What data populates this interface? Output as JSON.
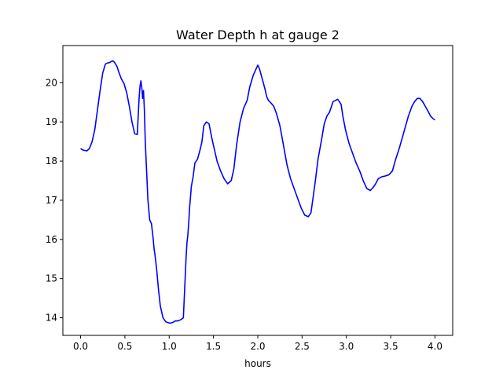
{
  "chart_data": {
    "type": "line",
    "title": "Water Depth h at gauge 2",
    "xlabel": "hours",
    "ylabel": "",
    "xlim": [
      -0.2,
      4.2
    ],
    "ylim": [
      13.55,
      20.95
    ],
    "xticks": [
      0.0,
      0.5,
      1.0,
      1.5,
      2.0,
      2.5,
      3.0,
      3.5,
      4.0
    ],
    "xtick_labels": [
      "0.0",
      "0.5",
      "1.0",
      "1.5",
      "2.0",
      "2.5",
      "3.0",
      "3.5",
      "4.0"
    ],
    "yticks": [
      14,
      15,
      16,
      17,
      18,
      19,
      20
    ],
    "ytick_labels": [
      "14",
      "15",
      "16",
      "17",
      "18",
      "19",
      "20"
    ],
    "grid": false,
    "series": [
      {
        "color": "#0000ff",
        "x": [
          0.0,
          0.03,
          0.07,
          0.1,
          0.13,
          0.16,
          0.19,
          0.22,
          0.25,
          0.28,
          0.3,
          0.33,
          0.36,
          0.38,
          0.41,
          0.43,
          0.46,
          0.49,
          0.52,
          0.55,
          0.58,
          0.61,
          0.64,
          0.66,
          0.67,
          0.68,
          0.69,
          0.7,
          0.71,
          0.72,
          0.73,
          0.74,
          0.75,
          0.76,
          0.78,
          0.8,
          0.82,
          0.83,
          0.84,
          0.86,
          0.88,
          0.9,
          0.93,
          0.96,
          0.98,
          1.01,
          1.04,
          1.07,
          1.1,
          1.13,
          1.16,
          1.18,
          1.19,
          1.2,
          1.21,
          1.22,
          1.23,
          1.25,
          1.27,
          1.29,
          1.32,
          1.35,
          1.37,
          1.39,
          1.42,
          1.45,
          1.48,
          1.51,
          1.54,
          1.58,
          1.62,
          1.66,
          1.7,
          1.73,
          1.76,
          1.8,
          1.84,
          1.88,
          1.91,
          1.95,
          1.98,
          2.0,
          2.02,
          2.05,
          2.08,
          2.1,
          2.12,
          2.15,
          2.18,
          2.21,
          2.25,
          2.29,
          2.33,
          2.37,
          2.41,
          2.45,
          2.49,
          2.53,
          2.57,
          2.6,
          2.62,
          2.65,
          2.68,
          2.72,
          2.75,
          2.78,
          2.81,
          2.85,
          2.88,
          2.9,
          2.92,
          2.94,
          2.96,
          2.99,
          3.03,
          3.07,
          3.11,
          3.15,
          3.19,
          3.23,
          3.27,
          3.3,
          3.33,
          3.36,
          3.4,
          3.44,
          3.48,
          3.52,
          3.55,
          3.6,
          3.65,
          3.7,
          3.74,
          3.77,
          3.8,
          3.83,
          3.86,
          3.89,
          3.92,
          3.95,
          3.98,
          4.0
        ],
        "y": [
          18.32,
          18.28,
          18.26,
          18.32,
          18.5,
          18.8,
          19.3,
          19.8,
          20.25,
          20.48,
          20.5,
          20.52,
          20.56,
          20.53,
          20.42,
          20.28,
          20.1,
          19.98,
          19.75,
          19.4,
          19.0,
          18.7,
          18.68,
          19.6,
          19.9,
          20.05,
          19.9,
          19.6,
          19.8,
          19.3,
          18.5,
          18.0,
          17.5,
          17.0,
          16.5,
          16.4,
          16.0,
          15.75,
          15.6,
          15.2,
          14.7,
          14.3,
          14.0,
          13.9,
          13.88,
          13.86,
          13.88,
          13.92,
          13.92,
          13.95,
          14.0,
          15.0,
          15.5,
          15.9,
          16.1,
          16.4,
          16.8,
          17.35,
          17.6,
          17.95,
          18.05,
          18.3,
          18.5,
          18.9,
          19.0,
          18.95,
          18.6,
          18.3,
          18.0,
          17.75,
          17.55,
          17.42,
          17.5,
          17.8,
          18.4,
          19.0,
          19.35,
          19.55,
          19.9,
          20.2,
          20.35,
          20.45,
          20.35,
          20.1,
          19.85,
          19.65,
          19.55,
          19.48,
          19.4,
          19.22,
          18.9,
          18.4,
          17.9,
          17.55,
          17.3,
          17.05,
          16.8,
          16.62,
          16.58,
          16.68,
          17.0,
          17.5,
          18.05,
          18.55,
          18.95,
          19.15,
          19.25,
          19.52,
          19.55,
          19.58,
          19.52,
          19.45,
          19.15,
          18.8,
          18.45,
          18.2,
          17.95,
          17.75,
          17.5,
          17.3,
          17.25,
          17.32,
          17.42,
          17.55,
          17.6,
          17.62,
          17.65,
          17.75,
          18.0,
          18.35,
          18.75,
          19.15,
          19.4,
          19.52,
          19.6,
          19.6,
          19.52,
          19.4,
          19.28,
          19.15,
          19.08,
          19.05
        ]
      }
    ]
  }
}
